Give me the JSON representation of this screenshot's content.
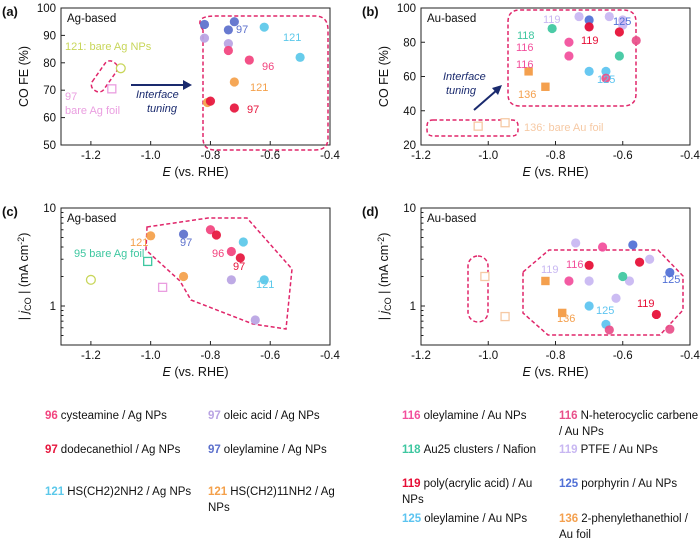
{
  "colors": {
    "l96": "#f2447e",
    "l97a": "#b9a4e3",
    "l97b": "#e6163d",
    "l97c": "#5c70cc",
    "l121a": "#5bc8ea",
    "l121b": "#f4a04a",
    "bareAg": "#ea9ee0",
    "agnp": "#c8d65a",
    "u116a": "#f24f9c",
    "u116b": "#e8508a",
    "u118": "#3ec7a0",
    "u119a": "#c8b7f2",
    "u119b": "#e60d35",
    "u125a": "#5170d6",
    "u125b": "#5cc4f0",
    "u136": "#f4a04e",
    "bareAu": "#f6c9a4",
    "frame": "#e0266a",
    "arrow": "#1a2a6e"
  },
  "panels": [
    {
      "id": "a",
      "letter": "(a)",
      "tag": "Ag-based",
      "ylabel": "CO FE (%)",
      "xlabel": "E (vs. RHE)",
      "x_ticks": [
        "-1.2",
        "-1.0",
        "-0.8",
        "-0.6",
        "-0.4"
      ],
      "y_ticks": [
        "50",
        "60",
        "70",
        "80",
        "90",
        "100"
      ],
      "ann_bare_np": "121: bare Ag NPs",
      "ann_foil_num": "97",
      "ann_foil": "bare Ag foil",
      "arrow_label_1": "Interface",
      "arrow_label_2": "tuning",
      "lbl_97a": "97",
      "lbl_121a": "121",
      "lbl_96": "96",
      "lbl_121b": "121",
      "lbl_97b": "97"
    },
    {
      "id": "b",
      "letter": "(b)",
      "tag": "Au-based",
      "ylabel": "CO FE (%)",
      "xlabel": "E (vs. RHE)",
      "x_ticks": [
        "-1.2",
        "-1.0",
        "-0.8",
        "-0.6",
        "-0.4"
      ],
      "y_ticks": [
        "20",
        "40",
        "60",
        "80",
        "100"
      ],
      "lbl_119a": "119",
      "lbl_125a": "125",
      "lbl_118": "118",
      "lbl_119b": "119",
      "lbl_116a": "116",
      "lbl_116b": "116",
      "lbl_125b": "125",
      "lbl_136": "136",
      "arrow_label_1": "Interface",
      "arrow_label_2": "tuning",
      "ann_foil": "136: bare Au foil"
    },
    {
      "id": "c",
      "letter": "(c)",
      "tag": "Ag-based",
      "ylabel_pre": "| j",
      "ylabel_sub": "CO",
      "ylabel_post": " | (mA cm",
      "ylabel_sup": "-2",
      "ylabel_end": ")",
      "xlabel": "E (vs. RHE)",
      "x_ticks": [
        "-1.2",
        "-1.0",
        "-0.8",
        "-0.6",
        "-0.4"
      ],
      "y_ticks": [
        "1",
        "10"
      ],
      "ann_foil": "95 bare Ag foil",
      "lbl_121a": "121",
      "lbl_97a": "97",
      "lbl_96": "96",
      "lbl_97b": "97",
      "lbl_121b": "121"
    },
    {
      "id": "d",
      "letter": "(d)",
      "tag": "Au-based",
      "ylabel_pre": "| j",
      "ylabel_sub": "CO",
      "ylabel_post": " | (mA cm",
      "ylabel_sup": "-2",
      "ylabel_end": ")",
      "xlabel": "E (vs. RHE)",
      "x_ticks": [
        "-1.2",
        "-1.0",
        "-0.8",
        "-0.6",
        "-0.4"
      ],
      "y_ticks": [
        "1",
        "10"
      ],
      "lbl_119a": "119",
      "lbl_116": "116",
      "lbl_125a": "125",
      "lbl_125b": "125",
      "lbl_136": "136",
      "lbl_119b": "119"
    }
  ],
  "chart_data": [
    {
      "type": "scatter",
      "panel": "a",
      "title": "Ag-based",
      "xlabel": "E (vs. RHE)",
      "ylabel": "CO FE (%)",
      "xlim": [
        -1.3,
        -0.4
      ],
      "ylim": [
        50,
        100
      ],
      "series": [
        {
          "name": "bare Ag NPs (121)",
          "color": "agnp",
          "marker": "open-circle",
          "x": [
            -1.1
          ],
          "y": [
            78
          ]
        },
        {
          "name": "bare Ag foil (97)",
          "color": "bareAg",
          "marker": "open-square",
          "x": [
            -1.13
          ],
          "y": [
            70.5
          ]
        },
        {
          "name": "oleylamine / Ag NPs (97)",
          "color": "l97c",
          "marker": "circle",
          "x": [
            -0.82,
            -0.74,
            -0.72
          ],
          "y": [
            94,
            92,
            95
          ]
        },
        {
          "name": "oleic acid / Ag NPs (97)",
          "color": "l97a",
          "marker": "circle",
          "x": [
            -0.82,
            -0.74
          ],
          "y": [
            89,
            87
          ]
        },
        {
          "name": "HS(CH2)2NH2 / Ag NPs (121)",
          "color": "l121a",
          "marker": "circle",
          "x": [
            -0.62,
            -0.5
          ],
          "y": [
            93,
            82
          ]
        },
        {
          "name": "cysteamine / Ag NPs (96)",
          "color": "l96",
          "marker": "circle",
          "x": [
            -0.74,
            -0.67
          ],
          "y": [
            84.5,
            81
          ]
        },
        {
          "name": "HS(CH2)11NH2 / Ag NPs (121)",
          "color": "l121b",
          "marker": "circle",
          "x": [
            -0.72,
            -0.81
          ],
          "y": [
            73,
            65.5
          ]
        },
        {
          "name": "dodecanethiol / Ag NPs (97)",
          "color": "l97b",
          "marker": "circle",
          "x": [
            -0.8,
            -0.72
          ],
          "y": [
            66,
            63.5
          ]
        }
      ]
    },
    {
      "type": "scatter",
      "panel": "b",
      "title": "Au-based",
      "xlabel": "E (vs. RHE)",
      "ylabel": "CO FE (%)",
      "xlim": [
        -1.2,
        -0.4
      ],
      "ylim": [
        20,
        100
      ],
      "series": [
        {
          "name": "bare Au foil (136)",
          "color": "bareAu",
          "marker": "open-square",
          "x": [
            -1.03,
            -0.95
          ],
          "y": [
            31,
            33
          ]
        },
        {
          "name": "PTFE / Au NPs (119)",
          "color": "u119a",
          "marker": "circle",
          "x": [
            -0.73,
            -0.64,
            -0.6,
            -0.6,
            -0.7
          ],
          "y": [
            95,
            95,
            93,
            90,
            89
          ]
        },
        {
          "name": "porphyrin / Au NPs (125)",
          "color": "u125a",
          "marker": "circle",
          "x": [
            -0.7
          ],
          "y": [
            93
          ]
        },
        {
          "name": "Au25 clusters / Nafion (118)",
          "color": "u118",
          "marker": "circle",
          "x": [
            -0.81,
            -0.61
          ],
          "y": [
            88,
            72
          ]
        },
        {
          "name": "poly(acrylic acid) / Au NPs (119)",
          "color": "u119b",
          "marker": "circle",
          "x": [
            -0.7,
            -0.61
          ],
          "y": [
            89,
            86
          ]
        },
        {
          "name": "oleylamine / Au NPs (116)",
          "color": "u116a",
          "marker": "circle",
          "x": [
            -0.76,
            -0.76
          ],
          "y": [
            80,
            72
          ]
        },
        {
          "name": "N-heterocyclic carbene / Au NPs (116)",
          "color": "u116b",
          "marker": "circle",
          "x": [
            -0.56
          ],
          "y": [
            81
          ]
        },
        {
          "name": "oleylamine / Au NPs (125)",
          "color": "u125b",
          "marker": "circle",
          "x": [
            -0.7,
            -0.65
          ],
          "y": [
            63,
            63
          ]
        },
        {
          "name": "2-phenylethanethiol / Au foil (136)",
          "color": "u136",
          "marker": "square",
          "x": [
            -0.88,
            -0.83
          ],
          "y": [
            63,
            54
          ]
        },
        {
          "name": "N-heterocyclic carbene / Au NPs (116) low",
          "color": "u116b",
          "marker": "circle",
          "x": [
            -0.65
          ],
          "y": [
            59
          ]
        }
      ]
    },
    {
      "type": "scatter",
      "panel": "c",
      "title": "Ag-based",
      "xlabel": "E (vs. RHE)",
      "ylabel": "|jCO| (mA cm-2)",
      "xlim": [
        -1.3,
        -0.4
      ],
      "ylim": [
        0.4,
        10
      ],
      "yscale": "log",
      "series": [
        {
          "name": "bare Ag NPs",
          "color": "agnp",
          "marker": "open-circle",
          "x": [
            -1.2
          ],
          "y": [
            1.85
          ]
        },
        {
          "name": "bare Ag foil (95)",
          "color": "u118",
          "marker": "open-square",
          "x": [
            -1.01
          ],
          "y": [
            2.85
          ]
        },
        {
          "name": "bare Ag foil",
          "color": "bareAg",
          "marker": "open-square",
          "x": [
            -0.96
          ],
          "y": [
            1.55
          ]
        },
        {
          "name": "HS(CH2)11NH2 / Ag NPs (121)",
          "color": "l121b",
          "marker": "circle",
          "x": [
            -1.0,
            -0.89
          ],
          "y": [
            5.2,
            2.0
          ]
        },
        {
          "name": "oleylamine / Ag NPs (97)",
          "color": "l97c",
          "marker": "circle",
          "x": [
            -0.89
          ],
          "y": [
            5.4
          ]
        },
        {
          "name": "cysteamine / Ag NPs (96)",
          "color": "l96",
          "marker": "circle",
          "x": [
            -0.8,
            -0.73
          ],
          "y": [
            6.0,
            3.6
          ]
        },
        {
          "name": "dodecanethiol / Ag NPs (97)",
          "color": "l97b",
          "marker": "circle",
          "x": [
            -0.78,
            -0.7
          ],
          "y": [
            5.3,
            3.1
          ]
        },
        {
          "name": "HS(CH2)2NH2 / Ag NPs (121)",
          "color": "l121a",
          "marker": "circle",
          "x": [
            -0.69,
            -0.62
          ],
          "y": [
            4.5,
            1.85
          ]
        },
        {
          "name": "oleic acid / Ag NPs (97)",
          "color": "l97a",
          "marker": "circle",
          "x": [
            -0.73,
            -0.65
          ],
          "y": [
            1.85,
            0.72
          ]
        }
      ]
    },
    {
      "type": "scatter",
      "panel": "d",
      "title": "Au-based",
      "xlabel": "E (vs. RHE)",
      "ylabel": "|jCO| (mA cm-2)",
      "xlim": [
        -1.2,
        -0.4
      ],
      "ylim": [
        0.4,
        10
      ],
      "yscale": "log",
      "series": [
        {
          "name": "bare Au foil",
          "color": "bareAu",
          "marker": "open-square",
          "x": [
            -1.01,
            -0.95
          ],
          "y": [
            2.0,
            0.78
          ]
        },
        {
          "name": "2-phenylethanethiol / Au foil (136)",
          "color": "u136",
          "marker": "square",
          "x": [
            -0.83,
            -0.78
          ],
          "y": [
            1.8,
            0.85
          ]
        },
        {
          "name": "PTFE / Au NPs (119)",
          "color": "u119a",
          "marker": "circle",
          "x": [
            -0.74,
            -0.7,
            -0.58,
            -0.52,
            -0.62
          ],
          "y": [
            4.4,
            1.8,
            1.8,
            3.0,
            1.2
          ]
        },
        {
          "name": "oleylamine / Au NPs (116)",
          "color": "u116a",
          "marker": "circle",
          "x": [
            -0.76,
            -0.66
          ],
          "y": [
            1.8,
            4.0
          ]
        },
        {
          "name": "poly(acrylic acid) / Au NPs (119)",
          "color": "u119b",
          "marker": "circle",
          "x": [
            -0.7,
            -0.55,
            -0.5
          ],
          "y": [
            2.6,
            2.8,
            0.82
          ]
        },
        {
          "name": "porphyrin / Au NPs (125)",
          "color": "u125a",
          "marker": "circle",
          "x": [
            -0.57,
            -0.46
          ],
          "y": [
            4.2,
            2.2
          ]
        },
        {
          "name": "oleylamine / Au NPs (125)",
          "color": "u125b",
          "marker": "circle",
          "x": [
            -0.7,
            -0.65
          ],
          "y": [
            1.0,
            0.65
          ]
        },
        {
          "name": "N-heterocyclic carbene / Au NPs (116)",
          "color": "u116b",
          "marker": "circle",
          "x": [
            -0.64,
            -0.46
          ],
          "y": [
            0.57,
            0.58
          ]
        },
        {
          "name": "Au25 clusters / Nafion (118)",
          "color": "u118",
          "marker": "circle",
          "x": [
            -0.6
          ],
          "y": [
            2.0
          ]
        }
      ]
    }
  ],
  "legend": [
    {
      "num": "96",
      "color": "l96",
      "text": "cysteamine / Ag NPs"
    },
    {
      "num": "97",
      "color": "l97a",
      "text": "oleic acid / Ag NPs"
    },
    {
      "num": "97",
      "color": "l97b",
      "text": "dodecanethiol / Ag NPs"
    },
    {
      "num": "97",
      "color": "l97c",
      "text": "oleylamine / Ag NPs"
    },
    {
      "num": "121",
      "color": "l121a",
      "text": "HS(CH2)2NH2 / Ag NPs"
    },
    {
      "num": "121",
      "color": "l121b",
      "text": "HS(CH2)11NH2 / Ag NPs"
    },
    {
      "num": "116",
      "color": "u116a",
      "text": "oleylamine / Au NPs"
    },
    {
      "num": "116",
      "color": "u116b",
      "text": "N-heterocyclic carbene / Au NPs"
    },
    {
      "num": "118",
      "color": "u118",
      "text": "Au25 clusters / Nafion"
    },
    {
      "num": "119",
      "color": "u119a",
      "text": "PTFE / Au NPs"
    },
    {
      "num": "119",
      "color": "u119b",
      "text": "poly(acrylic acid) / Au NPs"
    },
    {
      "num": "125",
      "color": "u125a",
      "text": "porphyrin / Au NPs"
    },
    {
      "num": "125",
      "color": "u125b",
      "text": "oleylamine / Au NPs"
    },
    {
      "num": "136",
      "color": "u136",
      "text": "2-phenylethanethiol / Au foil"
    }
  ]
}
